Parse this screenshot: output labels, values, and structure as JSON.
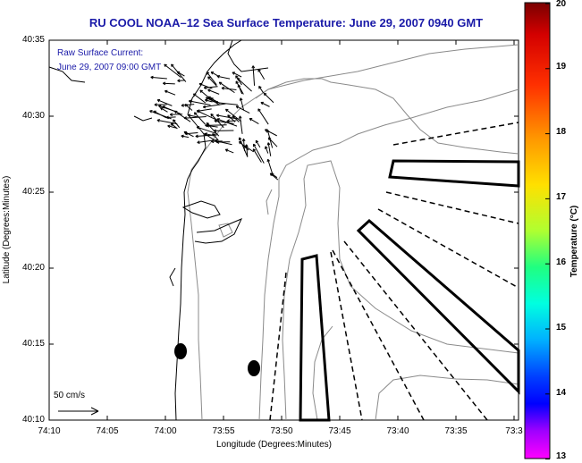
{
  "title": "RU COOL   NOAA–12  Sea Surface Temperature:  June 29, 2007 0940 GMT",
  "subtitle_line1": "Raw Surface Current:",
  "subtitle_line2": "June 29, 2007 09:00 GMT",
  "y_axis_label": "Latitude (Degrees:Minutes)",
  "x_axis_label": "Longitude (Degrees:Minutes)",
  "y_ticks": [
    "40:35",
    "40:30",
    "40:25",
    "40:20",
    "40:15",
    "40:10"
  ],
  "x_ticks": [
    "74:10",
    "74:05",
    "74:00",
    "73:55",
    "73:50",
    "73:45",
    "73:40",
    "73:35",
    "73:3"
  ],
  "scale_label": "50 cm/s",
  "colorbar": {
    "label": "Temperature (°C)",
    "ticks": [
      "20",
      "19",
      "18",
      "17",
      "16",
      "15",
      "14",
      "13"
    ],
    "range": [
      13,
      20
    ],
    "colors": [
      "#8b0000",
      "#ff0000",
      "#ff8000",
      "#ffff00",
      "#00ff80",
      "#00ffff",
      "#0000ff",
      "#ff00ff"
    ]
  },
  "colors": {
    "title": "#1a1aa8",
    "land_and_contours": "#000000",
    "bathymetry": "#888888"
  }
}
